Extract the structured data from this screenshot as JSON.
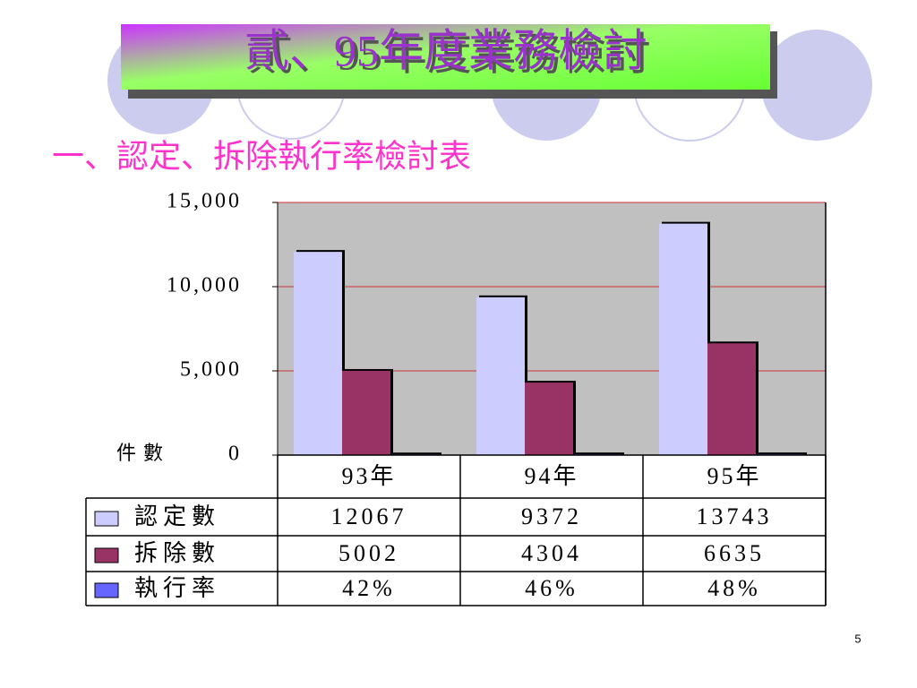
{
  "title": "貳、95年度業務檢討",
  "subtitle": "一、認定、拆除執行率檢討表",
  "page_number": "5",
  "chart_data": {
    "type": "bar",
    "y_label": "件數",
    "categories": [
      "93年",
      "94年",
      "95年"
    ],
    "series": [
      {
        "name": "認定數",
        "color": "#ccccff",
        "values": [
          12067,
          9372,
          13743
        ]
      },
      {
        "name": "拆除數",
        "color": "#993366",
        "values": [
          5002,
          4304,
          6635
        ]
      },
      {
        "name": "執行率",
        "color": "#6666ff",
        "values": [
          42,
          46,
          48
        ],
        "value_labels": [
          "42%",
          "46%",
          "48%"
        ]
      }
    ],
    "ylim": [
      0,
      15000
    ],
    "yticks": [
      0,
      {
        "value": 5000,
        "label": "5,000"
      },
      {
        "value": 10000,
        "label": "10,000"
      },
      {
        "value": 15000,
        "label": "15,000"
      }
    ],
    "grid": true,
    "grid_color": "#cc3333",
    "plot_background": "#c0c0c0"
  }
}
